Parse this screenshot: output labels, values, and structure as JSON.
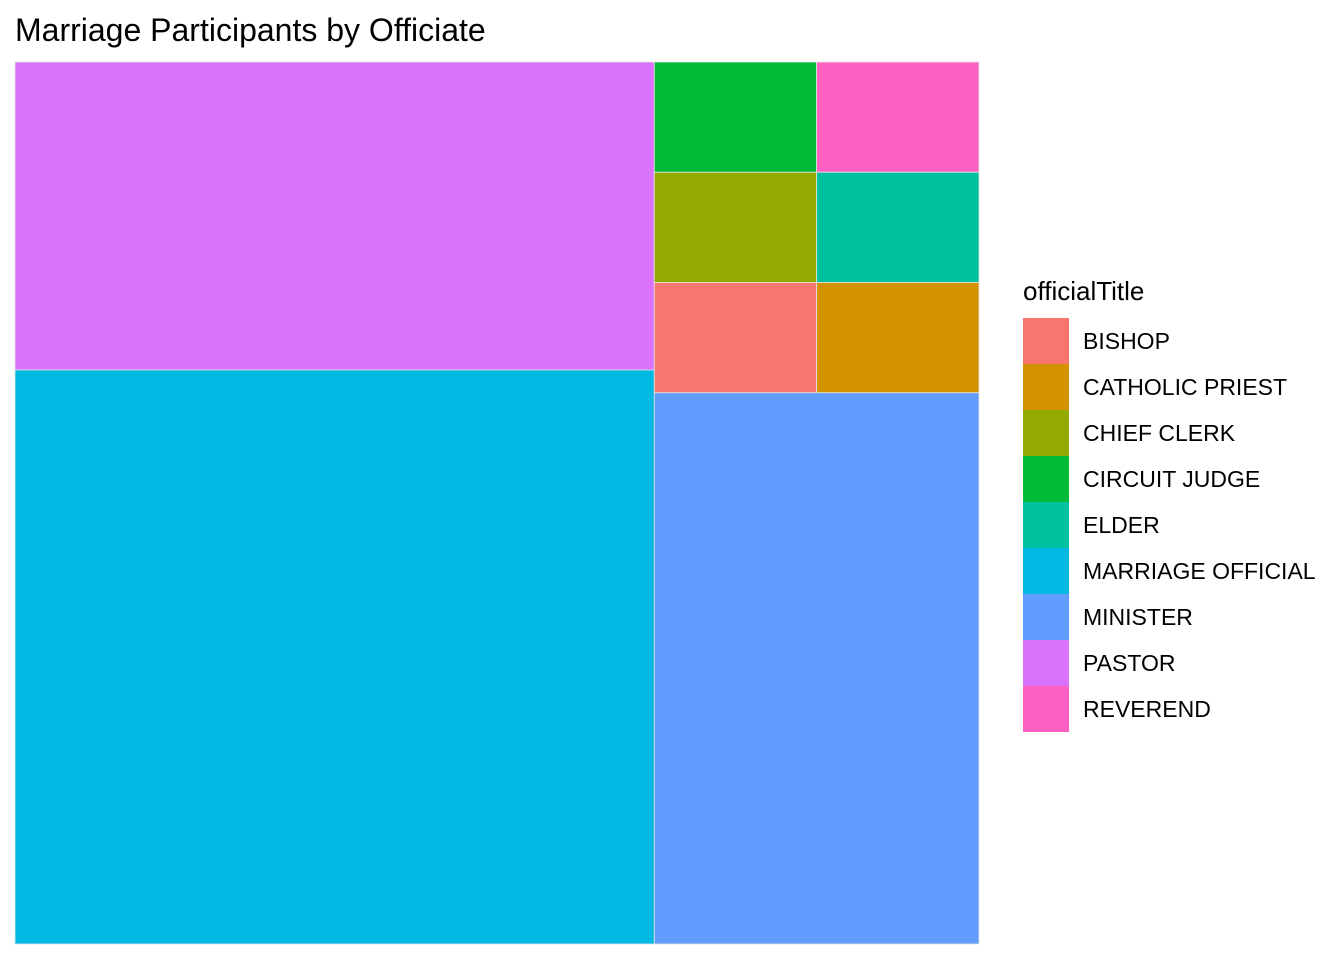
{
  "chart_data": {
    "type": "treemap",
    "title": "Marriage Participants by Officiate",
    "legend_title": "officialTitle",
    "legend_position": "right",
    "categories": [
      "BISHOP",
      "CATHOLIC PRIEST",
      "CHIEF CLERK",
      "CIRCUIT JUDGE",
      "ELDER",
      "MARRIAGE OFFICIAL",
      "MINISTER",
      "PASTOR",
      "REVEREND"
    ],
    "values": [
      4,
      4,
      4,
      4,
      4,
      82,
      40,
      44,
      4
    ],
    "colors": {
      "BISHOP": "#F8766D",
      "CATHOLIC PRIEST": "#D39200",
      "CHIEF CLERK": "#93AA00",
      "CIRCUIT JUDGE": "#00BA38",
      "ELDER": "#00C19F",
      "MARRIAGE OFFICIAL": "#00B9E3",
      "MINISTER": "#619CFF",
      "PASTOR": "#DB72FB",
      "REVEREND": "#FF61C3"
    }
  }
}
